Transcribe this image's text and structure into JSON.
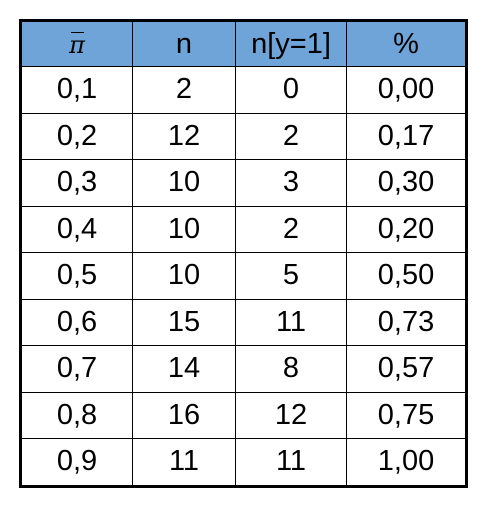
{
  "table": {
    "headers": [
      "π̄",
      "n",
      "n[y=1]",
      "%"
    ],
    "rows": [
      [
        "0,1",
        "2",
        "0",
        "0,00"
      ],
      [
        "0,2",
        "12",
        "2",
        "0,17"
      ],
      [
        "0,3",
        "10",
        "3",
        "0,30"
      ],
      [
        "0,4",
        "10",
        "2",
        "0,20"
      ],
      [
        "0,5",
        "10",
        "5",
        "0,50"
      ],
      [
        "0,6",
        "15",
        "11",
        "0,73"
      ],
      [
        "0,7",
        "14",
        "8",
        "0,57"
      ],
      [
        "0,8",
        "16",
        "12",
        "0,75"
      ],
      [
        "0,9",
        "11",
        "11",
        "1,00"
      ]
    ]
  },
  "colors": {
    "header_background": "#6ea4d8",
    "border": "#000000"
  }
}
